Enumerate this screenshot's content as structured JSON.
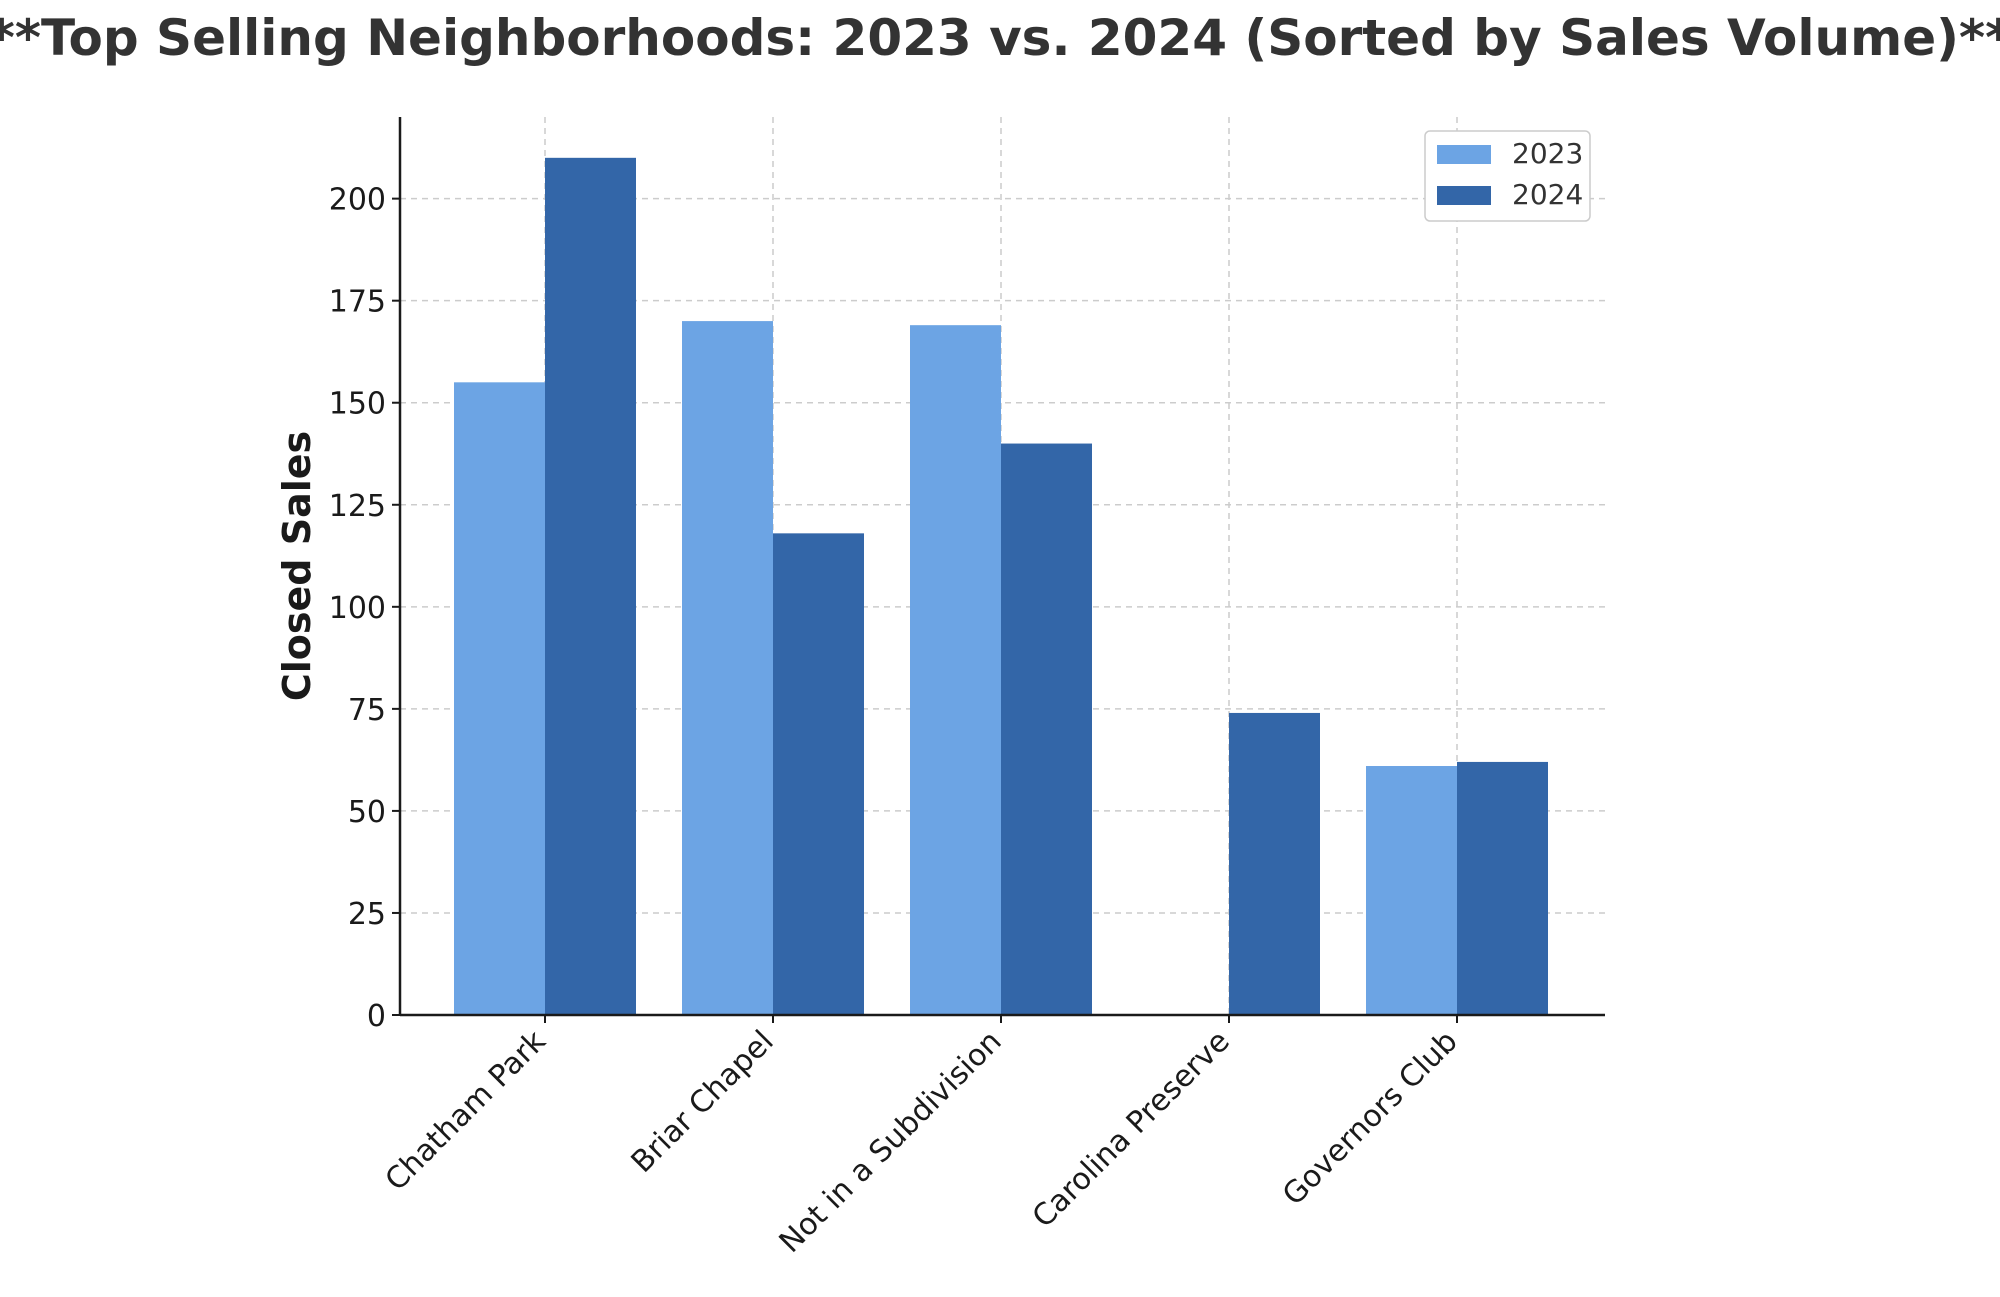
{
  "chart_data": {
    "type": "bar",
    "title": "**Top Selling Neighborhoods: 2023 vs. 2024 (Sorted by Sales Volume)**",
    "xlabel": "",
    "ylabel": "Closed Sales",
    "categories": [
      "Chatham Park",
      "Briar Chapel",
      "Not in a Subdivision",
      "Carolina Preserve",
      "Governors Club"
    ],
    "series": [
      {
        "name": "2023",
        "color": "#6ca4e4",
        "values": [
          155,
          170,
          169,
          0,
          61
        ]
      },
      {
        "name": "2024",
        "color": "#3366a8",
        "values": [
          210,
          118,
          140,
          74,
          62
        ]
      }
    ],
    "ylim": [
      0,
      220
    ],
    "yticks": [
      0,
      25,
      50,
      75,
      100,
      125,
      150,
      175,
      200
    ],
    "grid": true,
    "legend": "top-right"
  }
}
